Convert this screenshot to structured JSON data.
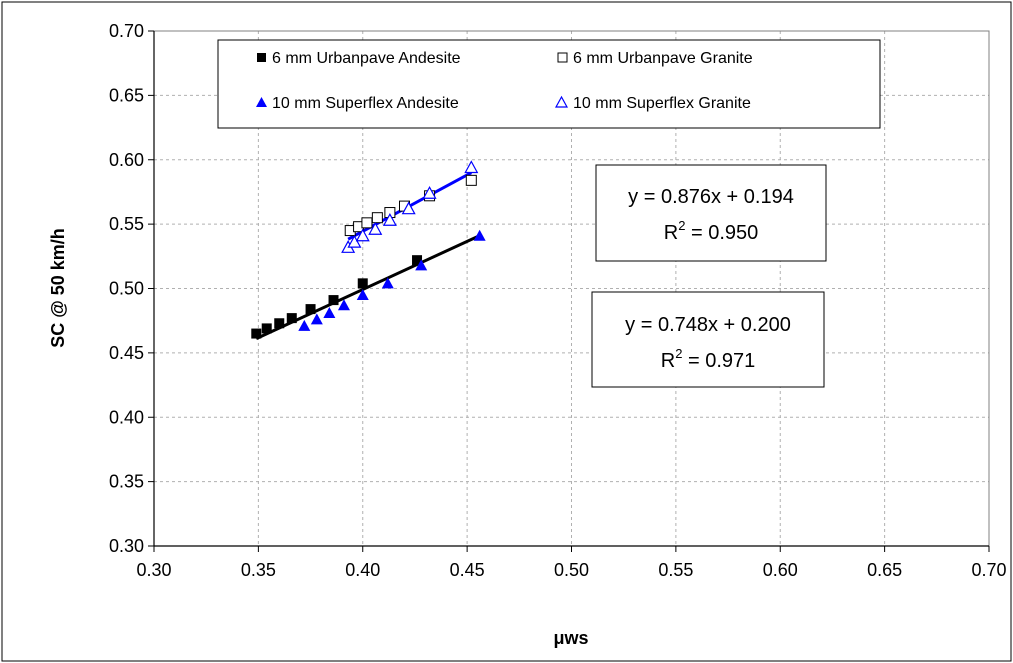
{
  "chart_data": {
    "type": "scatter",
    "xlabel": "μws",
    "ylabel": "SC @ 50 km/h",
    "xlim": [
      0.3,
      0.7
    ],
    "ylim": [
      0.3,
      0.7
    ],
    "x_ticks": [
      "0.30",
      "0.35",
      "0.40",
      "0.45",
      "0.50",
      "0.55",
      "0.60",
      "0.65",
      "0.70"
    ],
    "y_ticks": [
      "0.30",
      "0.35",
      "0.40",
      "0.45",
      "0.50",
      "0.55",
      "0.60",
      "0.65",
      "0.70"
    ],
    "grid": "dashed",
    "legend_position": "top",
    "series": [
      {
        "name": "6 mm Urbanpave Andesite",
        "marker": "square-filled",
        "color": "#000000",
        "points": [
          [
            0.349,
            0.465
          ],
          [
            0.354,
            0.469
          ],
          [
            0.36,
            0.473
          ],
          [
            0.366,
            0.477
          ],
          [
            0.375,
            0.484
          ],
          [
            0.386,
            0.491
          ],
          [
            0.4,
            0.504
          ],
          [
            0.426,
            0.522
          ]
        ]
      },
      {
        "name": "6 mm Urbanpave Granite",
        "marker": "square-open",
        "color": "#000000",
        "points": [
          [
            0.394,
            0.545
          ],
          [
            0.398,
            0.548
          ],
          [
            0.402,
            0.551
          ],
          [
            0.407,
            0.555
          ],
          [
            0.413,
            0.559
          ],
          [
            0.42,
            0.564
          ],
          [
            0.432,
            0.572
          ],
          [
            0.452,
            0.584
          ]
        ]
      },
      {
        "name": "10 mm Superflex Andesite",
        "marker": "triangle-filled",
        "color": "#0000FF",
        "points": [
          [
            0.372,
            0.471
          ],
          [
            0.378,
            0.476
          ],
          [
            0.384,
            0.481
          ],
          [
            0.391,
            0.487
          ],
          [
            0.4,
            0.495
          ],
          [
            0.412,
            0.504
          ],
          [
            0.428,
            0.518
          ],
          [
            0.456,
            0.541
          ]
        ]
      },
      {
        "name": "10 mm Superflex Granite",
        "marker": "triangle-open",
        "color": "#0000FF",
        "points": [
          [
            0.393,
            0.532
          ],
          [
            0.396,
            0.536
          ],
          [
            0.4,
            0.541
          ],
          [
            0.406,
            0.546
          ],
          [
            0.413,
            0.553
          ],
          [
            0.422,
            0.562
          ],
          [
            0.432,
            0.574
          ],
          [
            0.452,
            0.594
          ]
        ]
      }
    ],
    "trendlines": [
      {
        "name": "granite-fit",
        "color": "#0000FF",
        "x_range": [
          0.393,
          0.452
        ],
        "slope": 0.876,
        "intercept": 0.194
      },
      {
        "name": "andesite-fit",
        "color": "#000000",
        "x_range": [
          0.349,
          0.456
        ],
        "slope": 0.748,
        "intercept": 0.2
      }
    ],
    "annotations": [
      {
        "line1": "y = 0.876x + 0.194",
        "line2_prefix": "R",
        "line2_sup": "2",
        "line2_suffix": " = 0.950"
      },
      {
        "line1": "y = 0.748x + 0.200",
        "line2_prefix": "R",
        "line2_sup": "2",
        "line2_suffix": " = 0.971"
      }
    ]
  }
}
